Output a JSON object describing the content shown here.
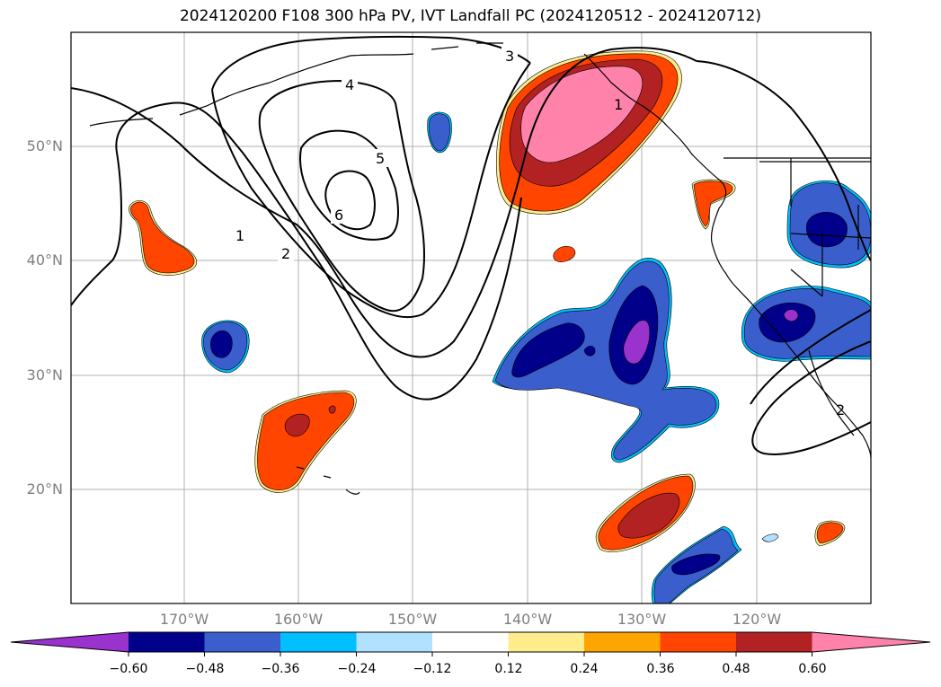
{
  "title": "2024120200 F108 300 hPa PV, IVT Landfall PC (2024120512 - 2024120712)",
  "lat_labels": [
    "50°N",
    "40°N",
    "30°N",
    "20°N"
  ],
  "lon_labels": [
    "170°W",
    "160°W",
    "150°W",
    "140°W",
    "130°W",
    "120°W"
  ],
  "contour_labels": [
    "1",
    "2",
    "3",
    "4",
    "5",
    "6",
    "1",
    "2"
  ],
  "colorbar": {
    "ticks": [
      "−0.60",
      "−0.48",
      "−0.36",
      "−0.24",
      "−0.12",
      "0.12",
      "0.24",
      "0.36",
      "0.48",
      "0.60"
    ],
    "colors": [
      "#9a32cd",
      "#00008b",
      "#3a5fcd",
      "#00bfff",
      "#b0e2ff",
      "#ffffff",
      "#ffec8b",
      "#ffa500",
      "#ff4500",
      "#b22222",
      "#ff82ab"
    ]
  },
  "palette": {
    "pos1": "#ffec8b",
    "pos2": "#ffa500",
    "pos3": "#ff4500",
    "pos4": "#b22222",
    "pos5": "#ff82ab",
    "neg1": "#b0e2ff",
    "neg2": "#00bfff",
    "neg3": "#3a5fcd",
    "neg4": "#00008b",
    "neg5": "#9a32cd"
  }
}
